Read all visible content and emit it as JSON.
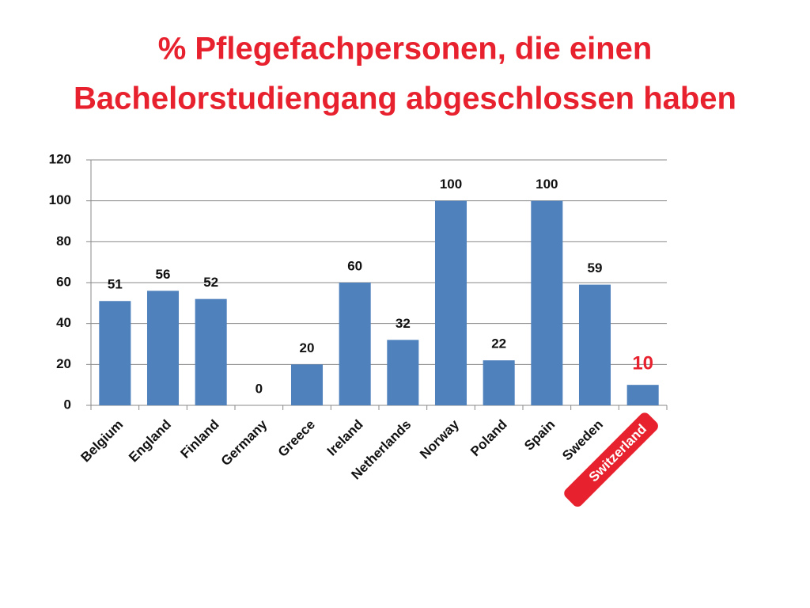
{
  "chart_data": {
    "type": "bar",
    "title": [
      "% Pflegefachpersonen, die einen",
      "Bachelorstudiengang abgeschlossen haben"
    ],
    "categories": [
      "Belgium",
      "England",
      "Finland",
      "Germany",
      "Greece",
      "Ireland",
      "Netherlands",
      "Norway",
      "Poland",
      "Spain",
      "Sweden",
      "Switzerland"
    ],
    "values": [
      51,
      56,
      52,
      0,
      20,
      60,
      32,
      100,
      22,
      100,
      59,
      10
    ],
    "color": "#4f81bd",
    "ylim": [
      0,
      120
    ],
    "yticks": [
      0,
      20,
      40,
      60,
      80,
      100,
      120
    ],
    "grid": true,
    "highlight_index": 11,
    "highlight_color": "#e8212e"
  }
}
